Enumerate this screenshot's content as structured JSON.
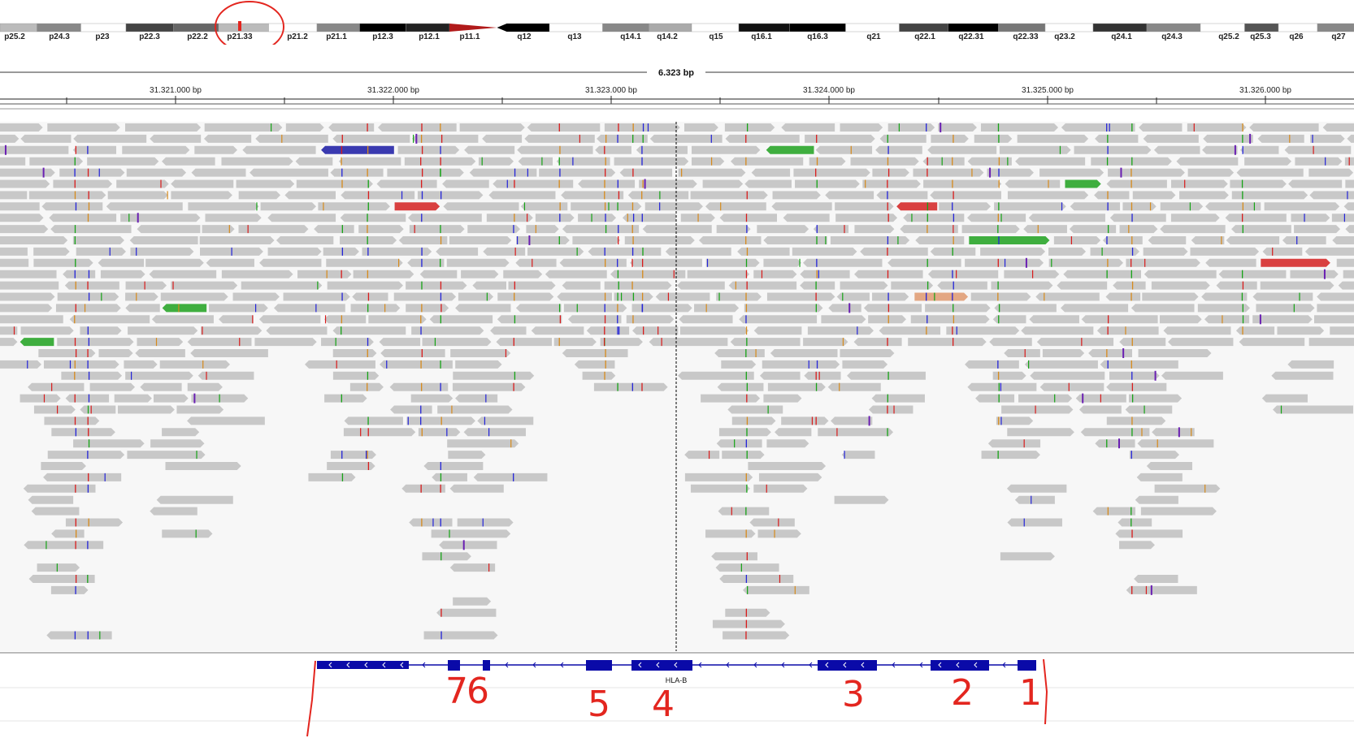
{
  "ideogram": {
    "bands": [
      "p25.2",
      "p24.3",
      "p23",
      "p22.3",
      "p22.2",
      "p21.33",
      "p21.2",
      "p21.1",
      "p12.3",
      "p12.1",
      "p11.1",
      "q12",
      "q13",
      "q14.1",
      "q14.2",
      "q15",
      "q16.1",
      "q16.3",
      "q21",
      "q22.1",
      "q22.31",
      "q22.33",
      "q23.2",
      "q24.1",
      "q24.3",
      "q25.2",
      "q25.3",
      "q26",
      "q27"
    ],
    "selected_band": "p21.33"
  },
  "ruler": {
    "span_label": "6.323 bp",
    "ticks": [
      "31.321.000 bp",
      "31.322.000 bp",
      "31.323.000 bp",
      "31.324.000 bp",
      "31.325.000 bp",
      "31.326.000 bp"
    ]
  },
  "gene": {
    "name": "HLA-B",
    "strand": "minus"
  },
  "annotations": {
    "exon_numbers": [
      "7",
      "6",
      "5",
      "4",
      "3",
      "2",
      "1"
    ]
  },
  "colors": {
    "read": "#c8c8c8",
    "background": "#f7f7f7",
    "gene": "#0a0aa8",
    "annotation": "#e3261f",
    "mismatch_A": "#16a316",
    "mismatch_C": "#2424d8",
    "mismatch_G": "#d68a1c",
    "mismatch_T": "#d81c1c",
    "insertion": "#6a1fb2"
  }
}
